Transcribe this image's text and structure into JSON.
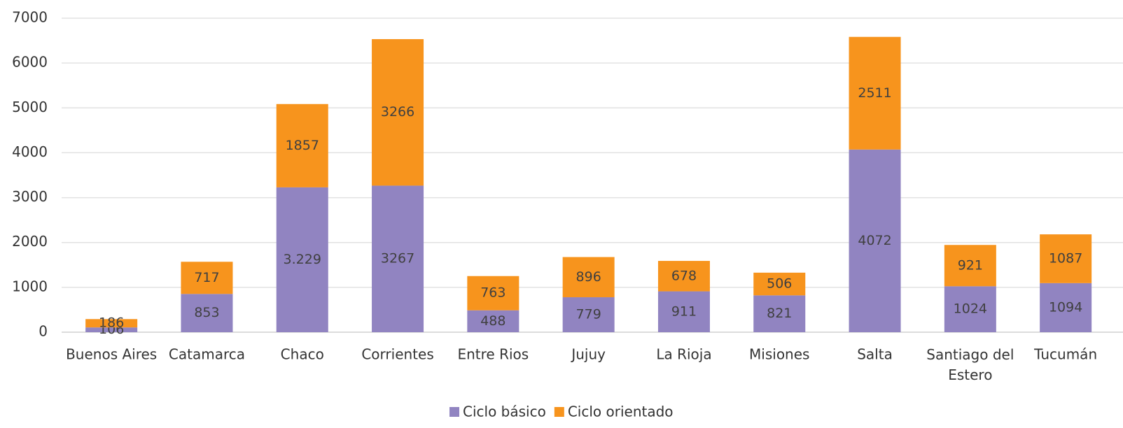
{
  "chart_data": {
    "type": "stacked_bar",
    "categories": [
      "Buenos Aires",
      "Catamarca",
      "Chaco",
      "Corrientes",
      "Entre Rios",
      "Jujuy",
      "La Rioja",
      "Misiones",
      "Salta",
      "Santiago del Estero",
      "Tucumán"
    ],
    "series": [
      {
        "name": "Ciclo básico",
        "color": "#9184c1",
        "values": [
          106,
          853,
          3229,
          3267,
          488,
          779,
          911,
          821,
          4072,
          1024,
          1094
        ],
        "value_labels": [
          "106",
          "853",
          "3.229",
          "3267",
          "488",
          "779",
          "911",
          "821",
          "4072",
          "1024",
          "1094"
        ]
      },
      {
        "name": "Ciclo orientado",
        "color": "#f7941d",
        "values": [
          186,
          717,
          1857,
          3266,
          763,
          896,
          678,
          506,
          2511,
          921,
          1087
        ]
      }
    ],
    "ylim": [
      0,
      7000
    ],
    "yticks": [
      0,
      1000,
      2000,
      3000,
      4000,
      5000,
      6000,
      7000
    ],
    "grid": true,
    "legend": "bottom"
  }
}
